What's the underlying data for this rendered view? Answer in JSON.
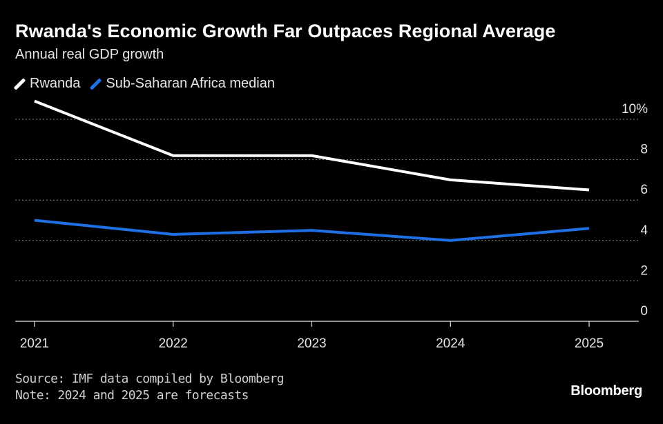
{
  "chart_data": {
    "type": "line",
    "title": "Rwanda's Economic Growth Far Outpaces Regional Average",
    "subtitle": "Annual real GDP growth",
    "categories": [
      "2021",
      "2022",
      "2023",
      "2024",
      "2025"
    ],
    "series": [
      {
        "name": "Rwanda",
        "color": "#ffffff",
        "values": [
          10.9,
          8.2,
          8.2,
          7.0,
          6.5
        ]
      },
      {
        "name": "Sub-Saharan Africa median",
        "color": "#1f6fe5",
        "values": [
          5.0,
          4.3,
          4.5,
          4.0,
          4.6
        ]
      }
    ],
    "y_ticks": [
      {
        "value": 0,
        "label": "0"
      },
      {
        "value": 2,
        "label": "2"
      },
      {
        "value": 4,
        "label": "4"
      },
      {
        "value": 6,
        "label": "6"
      },
      {
        "value": 8,
        "label": "8"
      },
      {
        "value": 10,
        "label": "10%"
      }
    ],
    "ylim": [
      0,
      10
    ],
    "xlabel": "",
    "ylabel": "",
    "grid": true,
    "legend_position": "top-left"
  },
  "footer": {
    "source": "Source: IMF data compiled by Bloomberg",
    "note": "Note: 2024 and 2025 are forecasts",
    "brand": "Bloomberg"
  }
}
